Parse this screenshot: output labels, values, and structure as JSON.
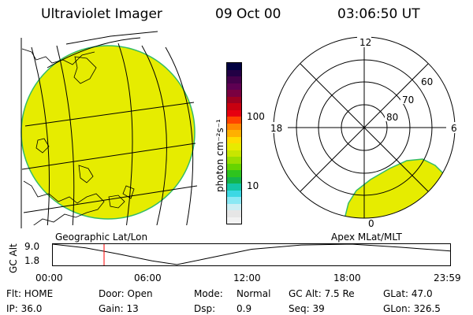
{
  "header": {
    "title": "Ultraviolet Imager",
    "date": "09 Oct 00",
    "time": "03:06:50 UT"
  },
  "colorbar": {
    "unit_label": "photon cm⁻²s⁻¹",
    "ticks": [
      "100",
      "10"
    ],
    "colors": [
      "#000040",
      "#220044",
      "#44004a",
      "#5e0052",
      "#7a0040",
      "#9e0020",
      "#c80010",
      "#e60010",
      "#ff4400",
      "#ff8800",
      "#ffb000",
      "#ffdc00",
      "#e8ea00",
      "#c8e600",
      "#9ade00",
      "#66d400",
      "#2ec41e",
      "#14b44c",
      "#14c6a6",
      "#3cd8e4",
      "#8ae8f4",
      "#cceef4",
      "#e6e6e6",
      "#f2f2f2"
    ]
  },
  "polar_plot": {
    "lat_labels": [
      "60",
      "70",
      "80"
    ],
    "mlt_labels": [
      "12",
      "18",
      "6",
      "0"
    ]
  },
  "plot_labels": {
    "left": "Geographic Lat/Lon",
    "right": "Apex MLat/MLT"
  },
  "altitude_plot": {
    "axis_label": "GC Alt",
    "y_ticks": [
      "9.0",
      "1.8"
    ],
    "x_ticks": [
      "00:00",
      "06:00",
      "12:00",
      "18:00",
      "23:59"
    ],
    "current_time_hours": 3.11,
    "chart_data": {
      "type": "line",
      "ylabel": "GC Alt",
      "ylim": [
        1.8,
        9.0
      ],
      "x": [
        0,
        2,
        4,
        6,
        7.5,
        9,
        12,
        15,
        18,
        21,
        23.98
      ],
      "y": [
        9.0,
        7.7,
        5.5,
        3.1,
        1.8,
        3.6,
        7.2,
        8.7,
        9.0,
        7.9,
        6.6
      ]
    }
  },
  "status": {
    "col1": [
      "Flt: HOME",
      "IP: 36.0"
    ],
    "col2": [
      "Door: Open",
      "Gain: 13"
    ],
    "col3_labels": [
      "Mode:",
      "Dsp:"
    ],
    "col3_values": [
      "Normal",
      "0.9"
    ],
    "col4": [
      "GC Alt: 7.5 Re",
      "Seq: 39"
    ],
    "col5": [
      "GLat: 47.0",
      "GLon: 326.5"
    ]
  },
  "colors": {
    "aurora_fill": "#e6ec00",
    "aurora_edge": "#33bb66",
    "time_marker": "#ff0000"
  }
}
